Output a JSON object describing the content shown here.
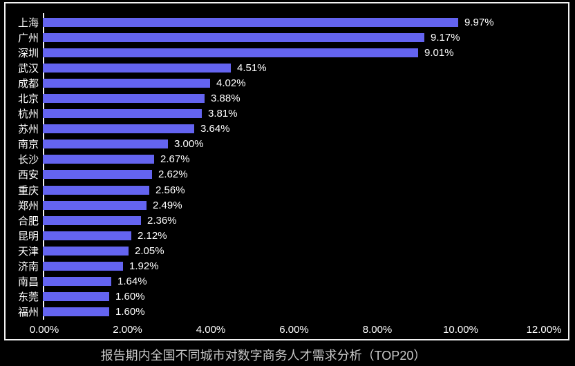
{
  "colors": {
    "background": "#000000",
    "bar": "#6464f0",
    "frame_border": "#f2f2f2",
    "axis_line": "#f2f2f2",
    "label_text": "#ffffff",
    "title_text": "#c9c9c9"
  },
  "chart_data": {
    "type": "bar",
    "orientation": "horizontal",
    "title": "报告期内全国不同城市对数字商务人才需求分析（TOP20）",
    "categories": [
      "上海",
      "广州",
      "深圳",
      "武汉",
      "成都",
      "北京",
      "杭州",
      "苏州",
      "南京",
      "长沙",
      "西安",
      "重庆",
      "郑州",
      "合肥",
      "昆明",
      "天津",
      "济南",
      "南昌",
      "东莞",
      "福州"
    ],
    "values": [
      9.97,
      9.17,
      9.01,
      4.51,
      4.02,
      3.88,
      3.81,
      3.64,
      3.0,
      2.67,
      2.62,
      2.56,
      2.49,
      2.36,
      2.12,
      2.05,
      1.92,
      1.64,
      1.6,
      1.6
    ],
    "value_labels": [
      "9.97%",
      "9.17%",
      "9.01%",
      "4.51%",
      "4.02%",
      "3.88%",
      "3.81%",
      "3.64%",
      "3.00%",
      "2.67%",
      "2.62%",
      "2.56%",
      "2.49%",
      "2.36%",
      "2.12%",
      "2.05%",
      "1.92%",
      "1.64%",
      "1.60%",
      "1.60%"
    ],
    "x_ticks": [
      "0.00%",
      "2.00%",
      "4.00%",
      "6.00%",
      "8.00%",
      "10.00%",
      "12.00%"
    ],
    "xlim": [
      0,
      12
    ],
    "grid": false,
    "legend": false
  }
}
